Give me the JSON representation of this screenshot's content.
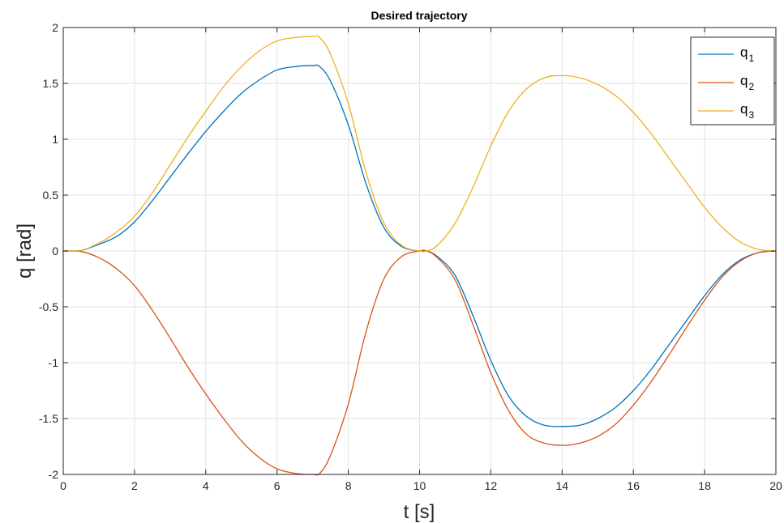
{
  "chart_data": {
    "type": "line",
    "title": "Desired trajectory",
    "xlabel": "t [s]",
    "ylabel": "q [rad]",
    "xlim": [
      0,
      20
    ],
    "ylim": [
      -2,
      2
    ],
    "xticks": [
      0,
      2,
      4,
      6,
      8,
      10,
      12,
      14,
      16,
      18,
      20
    ],
    "yticks": [
      -2,
      -1.5,
      -1,
      -0.5,
      0,
      0.5,
      1,
      1.5,
      2
    ],
    "grid": true,
    "legend_position": "top-right",
    "series": [
      {
        "name": "q",
        "subscript": "1",
        "color": "#0072BD",
        "x": [
          0,
          0.5,
          1,
          1.5,
          2,
          2.5,
          3,
          3.5,
          4,
          4.5,
          5,
          5.5,
          6,
          6.5,
          7,
          7.2,
          7.5,
          8,
          8.5,
          9,
          9.5,
          10,
          10.2,
          10.5,
          11,
          11.5,
          12,
          12.5,
          13,
          13.5,
          14,
          14.5,
          15,
          15.5,
          16,
          16.5,
          17,
          17.5,
          18,
          18.5,
          19,
          19.5,
          20
        ],
        "y": [
          0,
          0.005,
          0.06,
          0.13,
          0.26,
          0.45,
          0.66,
          0.87,
          1.07,
          1.25,
          1.41,
          1.53,
          1.62,
          1.65,
          1.66,
          1.65,
          1.52,
          1.13,
          0.6,
          0.21,
          0.04,
          0,
          0,
          -0.05,
          -0.22,
          -0.58,
          -0.98,
          -1.3,
          -1.48,
          -1.56,
          -1.57,
          -1.56,
          -1.5,
          -1.4,
          -1.25,
          -1.06,
          -0.84,
          -0.62,
          -0.4,
          -0.21,
          -0.08,
          -0.015,
          0
        ]
      },
      {
        "name": "q",
        "subscript": "2",
        "color": "#D95319",
        "x": [
          0,
          0.5,
          1,
          1.5,
          2,
          2.5,
          3,
          3.5,
          4,
          4.5,
          5,
          5.5,
          6,
          6.5,
          7,
          7.2,
          7.5,
          8,
          8.5,
          9,
          9.5,
          10,
          10.2,
          10.5,
          11,
          11.5,
          12,
          12.5,
          13,
          13.5,
          14,
          14.5,
          15,
          15.5,
          16,
          16.5,
          17,
          17.5,
          18,
          18.5,
          19,
          19.5,
          20
        ],
        "y": [
          0,
          -0.005,
          -0.06,
          -0.16,
          -0.31,
          -0.53,
          -0.78,
          -1.04,
          -1.28,
          -1.5,
          -1.7,
          -1.85,
          -1.95,
          -1.99,
          -2.0,
          -1.99,
          -1.83,
          -1.37,
          -0.72,
          -0.25,
          -0.05,
          0,
          0,
          -0.06,
          -0.26,
          -0.66,
          -1.09,
          -1.43,
          -1.64,
          -1.72,
          -1.74,
          -1.72,
          -1.66,
          -1.55,
          -1.38,
          -1.17,
          -0.93,
          -0.68,
          -0.44,
          -0.23,
          -0.09,
          -0.015,
          0
        ]
      },
      {
        "name": "q",
        "subscript": "3",
        "color": "#EDB120",
        "x": [
          0,
          0.5,
          1,
          1.5,
          2,
          2.5,
          3,
          3.5,
          4,
          4.5,
          5,
          5.5,
          6,
          6.5,
          7,
          7.2,
          7.5,
          8,
          8.5,
          9,
          9.5,
          10,
          10.2,
          10.5,
          11,
          11.5,
          12,
          12.5,
          13,
          13.5,
          14,
          14.5,
          15,
          15.5,
          16,
          16.5,
          17,
          17.5,
          18,
          18.5,
          19,
          19.5,
          20
        ],
        "y": [
          0,
          0.005,
          0.07,
          0.17,
          0.31,
          0.52,
          0.77,
          1.02,
          1.25,
          1.47,
          1.65,
          1.79,
          1.88,
          1.91,
          1.92,
          1.91,
          1.76,
          1.32,
          0.7,
          0.25,
          0.05,
          0,
          0,
          0.05,
          0.25,
          0.57,
          0.94,
          1.25,
          1.45,
          1.55,
          1.57,
          1.55,
          1.49,
          1.39,
          1.24,
          1.05,
          0.83,
          0.61,
          0.39,
          0.21,
          0.08,
          0.015,
          0
        ]
      }
    ]
  }
}
